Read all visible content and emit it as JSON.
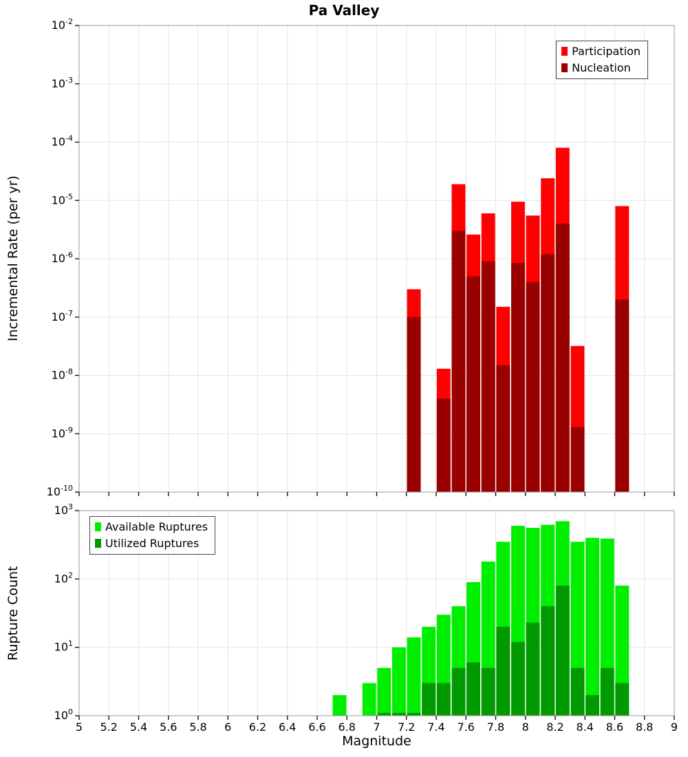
{
  "title": "Pa Valley",
  "chart_data": [
    {
      "type": "bar",
      "panel": "incremental-rate",
      "title": "Pa Valley",
      "ylabel": "Incremental Rate (per yr)",
      "xlim": [
        5,
        9
      ],
      "ylim": [
        1e-10,
        0.01
      ],
      "ylim_log10": [
        -10,
        -2
      ],
      "x_tick_step": 0.2,
      "bar_width": 0.092,
      "grid": true,
      "legend_position": "top-right",
      "legend": [
        {
          "label": "Participation",
          "color": "#ff0000"
        },
        {
          "label": "Nucleation",
          "color": "#990000"
        }
      ],
      "series": [
        {
          "name": "Participation",
          "color": "#ff0000",
          "x": [
            7.25,
            7.45,
            7.55,
            7.65,
            7.75,
            7.85,
            7.95,
            8.05,
            8.15,
            8.25,
            8.35,
            8.65
          ],
          "values": [
            3e-07,
            1.3e-08,
            1.9e-05,
            2.6e-06,
            6e-06,
            1.5e-07,
            9.5e-06,
            5.5e-06,
            2.4e-05,
            8e-05,
            3.2e-08,
            8e-06
          ]
        },
        {
          "name": "Nucleation",
          "color": "#990000",
          "x": [
            7.25,
            7.45,
            7.55,
            7.65,
            7.75,
            7.85,
            7.95,
            8.05,
            8.15,
            8.25,
            8.35,
            8.65
          ],
          "values": [
            1e-07,
            4e-09,
            3e-06,
            5e-07,
            9e-07,
            1.5e-08,
            8.5e-07,
            4e-07,
            1.2e-06,
            4e-06,
            1.3e-09,
            2e-07
          ]
        }
      ]
    },
    {
      "type": "bar",
      "panel": "rupture-count",
      "xlabel": "Magnitude",
      "ylabel": "Rupture Count",
      "xlim": [
        5,
        9
      ],
      "ylim": [
        1,
        1000
      ],
      "ylim_log10": [
        0,
        3
      ],
      "x_tick_step": 0.2,
      "bar_width": 0.092,
      "grid": true,
      "legend_position": "top-left",
      "legend": [
        {
          "label": "Available Ruptures",
          "color": "#00ee00"
        },
        {
          "label": "Utilized Ruptures",
          "color": "#009900"
        }
      ],
      "series": [
        {
          "name": "Available Ruptures",
          "color": "#00ee00",
          "x": [
            6.75,
            6.95,
            7.05,
            7.15,
            7.25,
            7.35,
            7.45,
            7.55,
            7.65,
            7.75,
            7.85,
            7.95,
            8.05,
            8.15,
            8.25,
            8.35,
            8.45,
            8.55,
            8.65
          ],
          "values": [
            2,
            3,
            5,
            10,
            14,
            20,
            30,
            40,
            90,
            180,
            350,
            600,
            560,
            620,
            700,
            350,
            400,
            390,
            80
          ]
        },
        {
          "name": "Utilized Ruptures",
          "color": "#009900",
          "x": [
            7.05,
            7.15,
            7.25,
            7.35,
            7.45,
            7.55,
            7.65,
            7.75,
            7.85,
            7.95,
            8.05,
            8.15,
            8.25,
            8.35,
            8.45,
            8.55,
            8.65
          ],
          "values": [
            1,
            1,
            1,
            3,
            3,
            5,
            6,
            5,
            20,
            12,
            23,
            40,
            80,
            5,
            2,
            5,
            3
          ]
        }
      ]
    }
  ]
}
